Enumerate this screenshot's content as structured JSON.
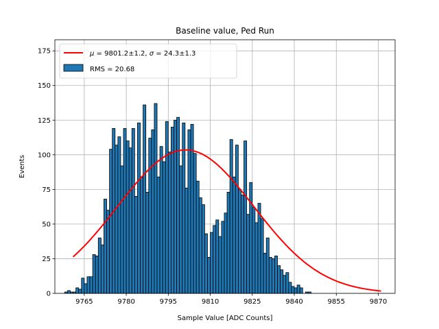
{
  "chart_data": {
    "type": "bar",
    "title": "Baseline value, Ped Run",
    "xlabel": "Sample Value [ADC Counts]",
    "ylabel": "Events",
    "xlim": [
      9754.5,
      9876
    ],
    "ylim": [
      0,
      183
    ],
    "xticks": [
      9765,
      9780,
      9795,
      9810,
      9825,
      9840,
      9855,
      9870
    ],
    "yticks": [
      0,
      25,
      50,
      75,
      100,
      125,
      150,
      175
    ],
    "grid": true,
    "legend_position": "top-left",
    "histogram": {
      "name": "RMS = 20.68",
      "color": "#1f77b4",
      "edge_color": "#000000",
      "bin_start": 9756,
      "bin_width": 1,
      "values": [
        0,
        0,
        1,
        2,
        1,
        1,
        4,
        3,
        11,
        7,
        12,
        12,
        28,
        27,
        40,
        35,
        68,
        60,
        104,
        119,
        107,
        113,
        92,
        119,
        110,
        105,
        119,
        70,
        123,
        84,
        136,
        73,
        112,
        118,
        137,
        84,
        106,
        95,
        124,
        102,
        120,
        125,
        127,
        92,
        123,
        76,
        118,
        122,
        101,
        81,
        69,
        64,
        43,
        26,
        44,
        49,
        53,
        41,
        52,
        58,
        73,
        111,
        84,
        107,
        75,
        71,
        110,
        57,
        80,
        62,
        51,
        65,
        54,
        29,
        40,
        26,
        25,
        27,
        20,
        17,
        13,
        15,
        8,
        5,
        4,
        6,
        4,
        0,
        1,
        1,
        0,
        0,
        0,
        0,
        0,
        0
      ]
    },
    "fit": {
      "name": "$\\mu=9801.2\\pm1.2$, $\\sigma=24.3\\pm1.3$",
      "color": "#ff0000",
      "x_range": [
        9761,
        9871
      ],
      "peak_x": 9801.2,
      "peak_y": 103.5,
      "sigma": 24.3
    }
  },
  "legend": {
    "fit_label_mu": "μ",
    "fit_label_mu_value": " = 9801.2±1.2, ",
    "fit_label_sigma": "σ",
    "fit_label_sigma_value": " = 24.3±1.3",
    "hist_label": "RMS = 20.68"
  },
  "title": "Baseline value, Ped Run",
  "xlabel": "Sample Value [ADC Counts]",
  "ylabel": "Events"
}
